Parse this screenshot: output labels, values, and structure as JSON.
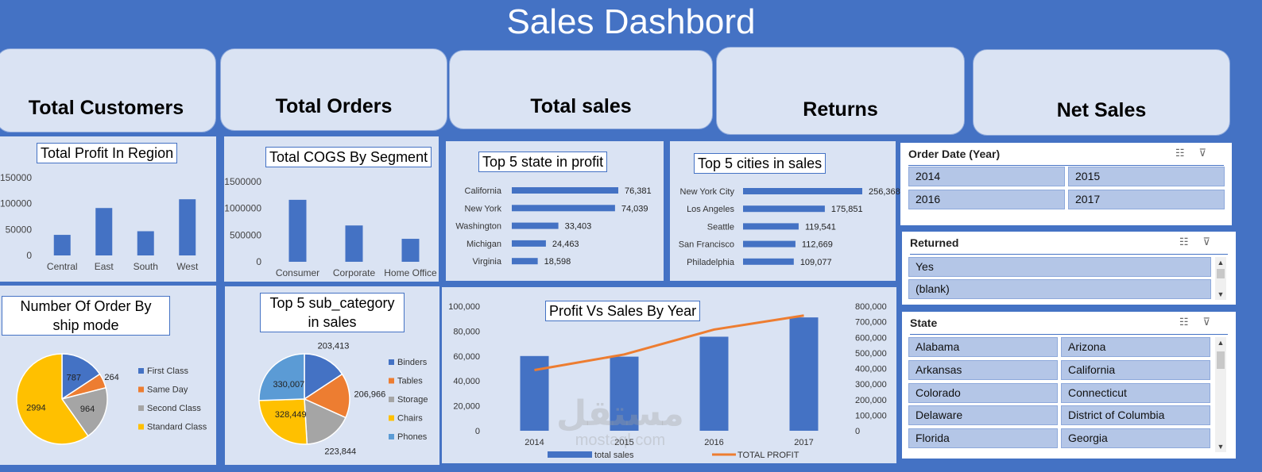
{
  "header": {
    "title": "Sales Dashbord"
  },
  "kpis": [
    "Total Customers",
    "Total Orders",
    "Total sales",
    "Returns",
    "Net Sales"
  ],
  "colors": {
    "blue": "#4472c4",
    "orange": "#ed7d31",
    "gray": "#a5a5a5",
    "gold": "#ffc000",
    "lightblue": "#5b9bd5"
  },
  "panels": {
    "region": "Total Profit In Region",
    "cogs": "Total COGS By Segment",
    "state": "Top 5 state in profit",
    "cities": "Top 5 cities in sales",
    "shipmode": "Number Of Order By ship mode",
    "subcat": "Top 5 sub_category in sales",
    "pvs": "Profit Vs Sales By Year"
  },
  "chart_data": [
    {
      "type": "bar",
      "title": "Total Profit In Region",
      "categories": [
        "Central",
        "East",
        "South",
        "West"
      ],
      "values": [
        39700,
        91500,
        46700,
        108400
      ],
      "ylim": [
        0,
        150000
      ],
      "yticks": [
        "150000",
        "100000",
        "50000",
        "0"
      ]
    },
    {
      "type": "bar",
      "title": "Total COGS By Segment",
      "categories": [
        "Consumer",
        "Corporate",
        "Home Office"
      ],
      "values": [
        1160000,
        680000,
        430000
      ],
      "ylim": [
        0,
        1500000
      ],
      "yticks": [
        "1500000",
        "1000000",
        "500000",
        "0"
      ]
    },
    {
      "type": "bar",
      "title": "Top 5 state in profit",
      "orientation": "horizontal",
      "categories": [
        "California",
        "New York",
        "Washington",
        "Michigan",
        "Virginia"
      ],
      "values": [
        76381,
        74039,
        33403,
        24463,
        18598
      ],
      "labels": [
        "76,381",
        "74,039",
        "33,403",
        "24,463",
        "18,598"
      ]
    },
    {
      "type": "bar",
      "title": "Top 5 cities in sales",
      "orientation": "horizontal",
      "categories": [
        "New York City",
        "Los Angeles",
        "Seattle",
        "San Francisco",
        "Philadelphia"
      ],
      "values": [
        256368,
        175851,
        119541,
        112669,
        109077
      ],
      "labels": [
        "256,368",
        "175,851",
        "119,541",
        "112,669",
        "109,077"
      ]
    },
    {
      "type": "pie",
      "title": "Number Of Order By ship mode",
      "categories": [
        "First Class",
        "Same Day",
        "Second Class",
        "Standard Class"
      ],
      "values": [
        787,
        264,
        964,
        2994
      ]
    },
    {
      "type": "pie",
      "title": "Top 5 sub_category in sales",
      "categories": [
        "Binders",
        "Tables",
        "Storage",
        "Chairs",
        "Phones"
      ],
      "values": [
        203413,
        206966,
        223844,
        328449,
        330007
      ],
      "labels": [
        "203,413",
        "206,966",
        "223,844",
        "328,449",
        "330,007"
      ]
    },
    {
      "type": "bar",
      "title": "Profit Vs Sales By Year",
      "categories": [
        "2014",
        "2015",
        "2016",
        "2017"
      ],
      "series": [
        {
          "name": "total sales",
          "type": "bar",
          "axis": "left",
          "values": [
            60000,
            59500,
            75500,
            91000
          ]
        },
        {
          "name": "TOTAL PROFIT",
          "type": "line",
          "axis": "right",
          "values": [
            390000,
            490000,
            650000,
            740000
          ]
        }
      ],
      "ylim": [
        0,
        100000
      ],
      "y2lim": [
        0,
        800000
      ],
      "yticks": [
        "100,000",
        "80,000",
        "60,000",
        "40,000",
        "20,000",
        "0"
      ],
      "y2ticks": [
        "800,000",
        "700,000",
        "600,000",
        "500,000",
        "400,000",
        "300,000",
        "200,000",
        "100,000",
        "0"
      ]
    }
  ],
  "slicers": [
    {
      "title": "Order Date (Year)",
      "items": [
        "2014",
        "2015",
        "2016",
        "2017"
      ]
    },
    {
      "title": "Returned",
      "items": [
        "Yes",
        "(blank)"
      ]
    },
    {
      "title": "State",
      "items": [
        "Alabama",
        "Arizona",
        "Arkansas",
        "California",
        "Colorado",
        "Connecticut",
        "Delaware",
        "District of Columbia",
        "Florida",
        "Georgia"
      ]
    }
  ],
  "slicer_icons": {
    "multi_select": "☷",
    "clear_filter": "⊽"
  },
  "scroll_arrows": {
    "up": "▲",
    "down": "▼"
  },
  "watermark": {
    "text": "مستقل",
    "sub": "mostaql.com"
  }
}
